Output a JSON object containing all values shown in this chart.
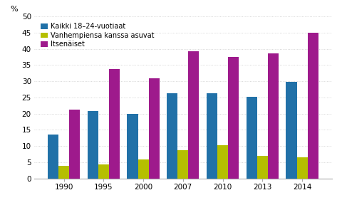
{
  "years": [
    "1990",
    "1995",
    "2000",
    "2007",
    "2010",
    "2013",
    "2014"
  ],
  "kaikki": [
    13.5,
    20.7,
    20.0,
    26.3,
    26.3,
    25.2,
    29.7
  ],
  "vanhempiensa": [
    3.8,
    4.3,
    5.8,
    8.8,
    10.3,
    7.0,
    6.5
  ],
  "itsenaiset": [
    21.2,
    33.7,
    30.8,
    39.2,
    37.5,
    38.5,
    45.0
  ],
  "color_kaikki": "#2171a8",
  "color_vanhempiensa": "#b5bf00",
  "color_itsenaiset": "#9e1a8c",
  "legend_kaikki": "Kaikki 18–24-vuotiaat",
  "legend_vanhempiensa": "Vanhempiensa kanssa asuvat",
  "legend_itsenaiset": "Itsenäiset",
  "ylabel": "%",
  "ylim": [
    0,
    50
  ],
  "yticks": [
    0,
    5,
    10,
    15,
    20,
    25,
    30,
    35,
    40,
    45,
    50
  ],
  "background_color": "#ffffff",
  "grid_color": "#cccccc"
}
